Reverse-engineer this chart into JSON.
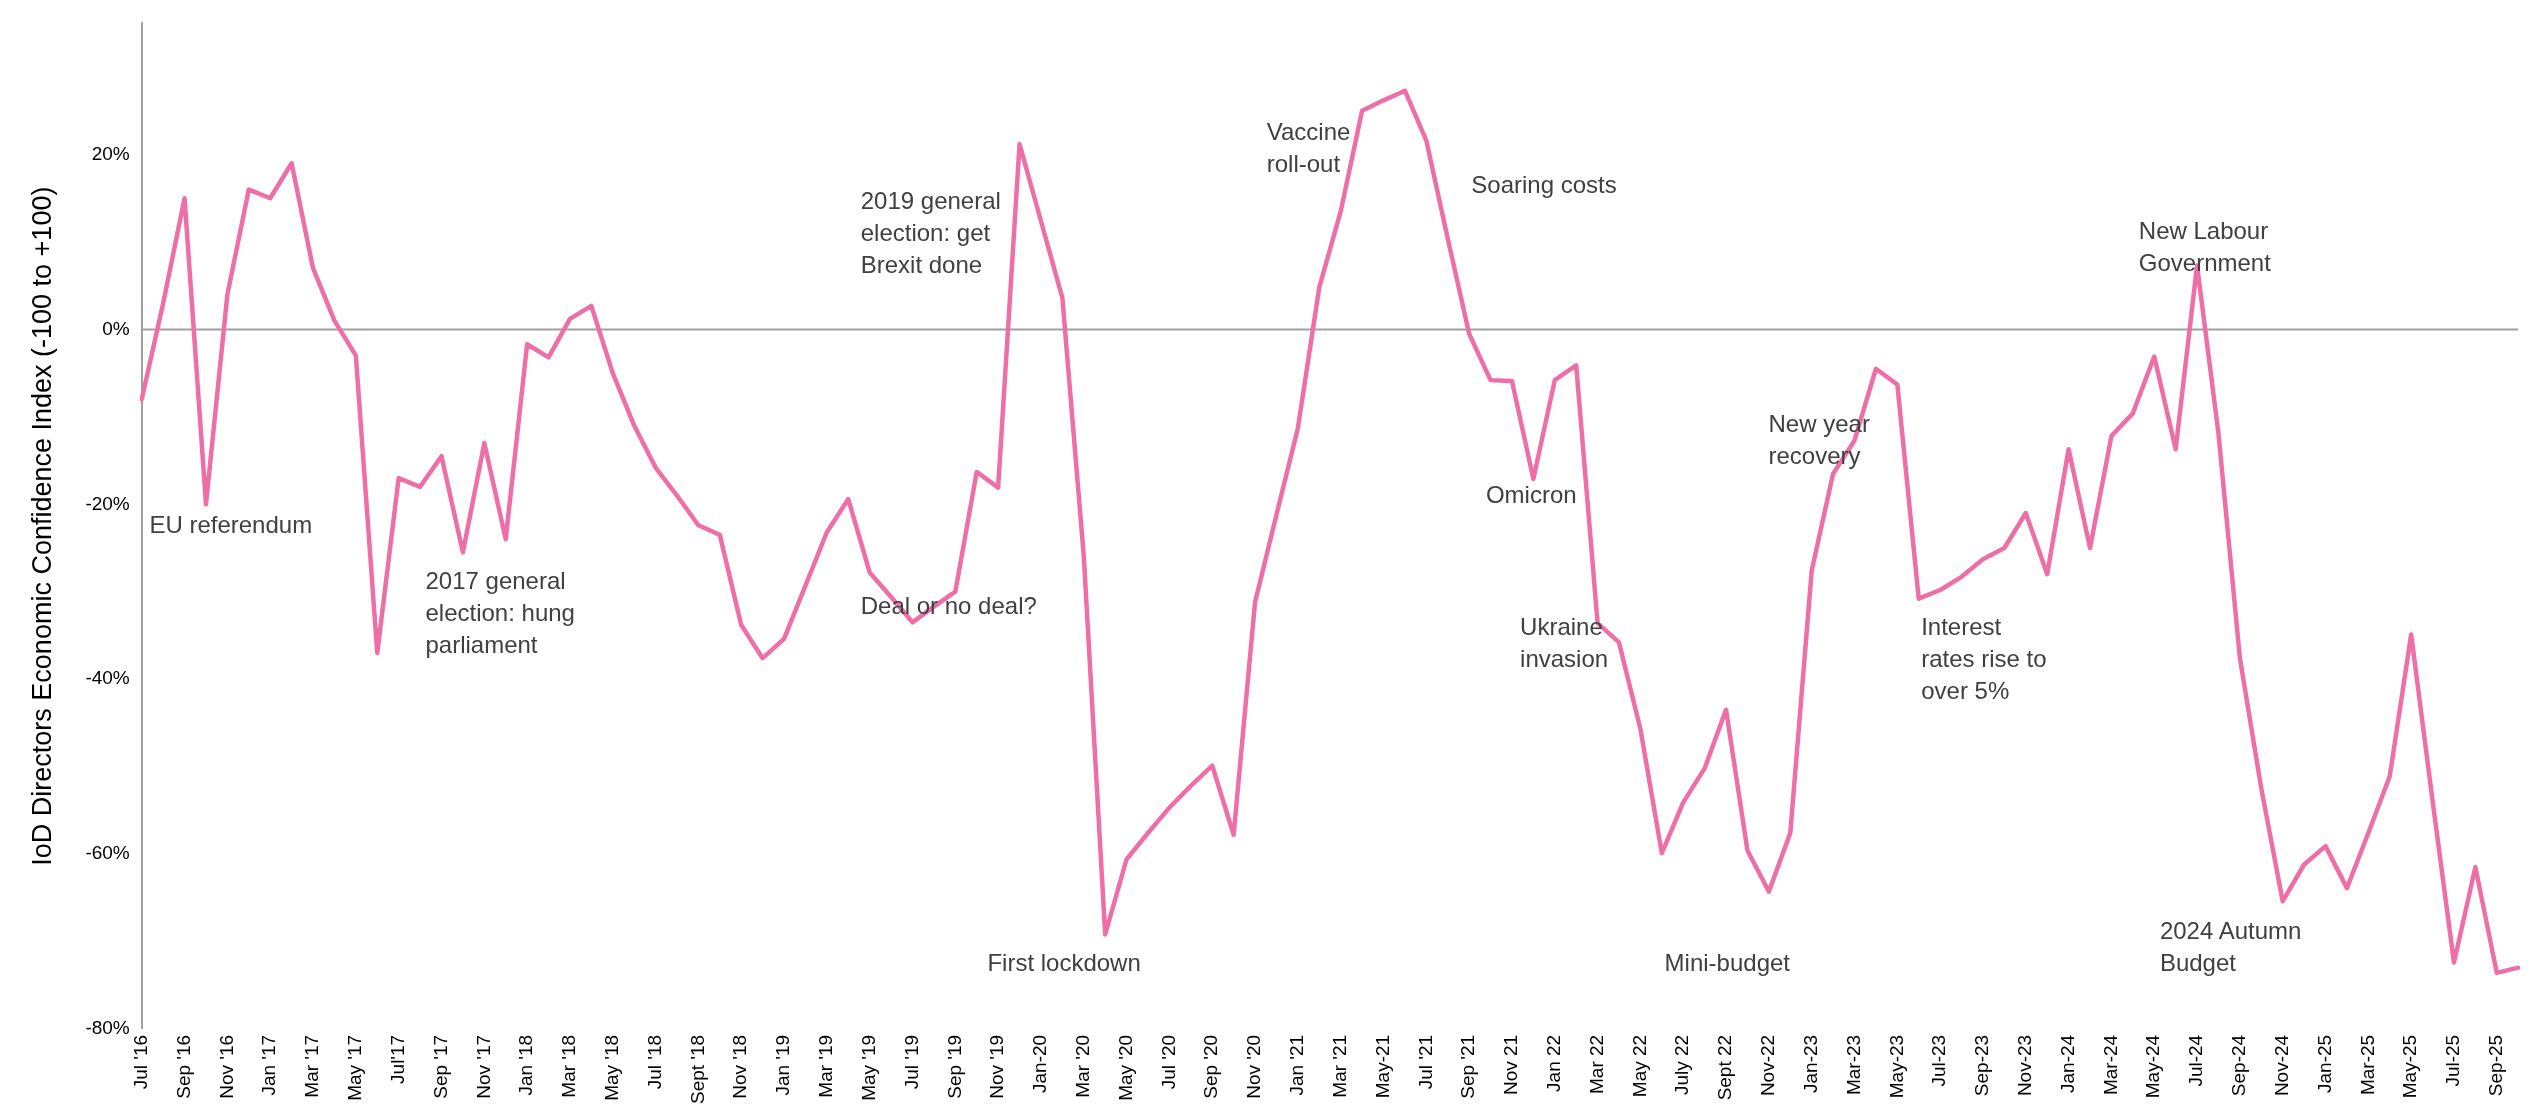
{
  "chart_data": {
    "type": "line",
    "ylabel": "IoD Directors Economic Confidence Index (-100 to +100)",
    "categories": [
      "Jul '16",
      null,
      "Sep '16",
      null,
      "Nov '16",
      null,
      "Jan '17",
      null,
      "Mar '17",
      null,
      "May '17",
      null,
      "Jul'17",
      null,
      "Sep '17",
      null,
      "Nov '17",
      null,
      "Jan '18",
      null,
      "Mar '18",
      null,
      "May '18",
      null,
      "Jul '18",
      null,
      "Sept '18",
      null,
      "Nov '18",
      null,
      "Jan '19",
      null,
      "Mar '19",
      null,
      "May '19",
      null,
      "Jul '19",
      null,
      "Sep '19",
      null,
      "Nov '19",
      null,
      "Jan-20",
      null,
      "Mar '20",
      null,
      "May '20",
      null,
      "Jul '20",
      null,
      "Sep '20",
      null,
      "Nov '20",
      null,
      "Jan '21",
      null,
      "Mar '21",
      null,
      "May-21",
      null,
      "Jul '21",
      null,
      "Sep '21",
      null,
      "Nov 21",
      null,
      "Jan 22",
      null,
      "Mar 22",
      null,
      "May 22",
      null,
      "July 22",
      null,
      "Sept 22",
      null,
      "Nov-22",
      null,
      "Jan-23",
      null,
      "Mar-23",
      null,
      "May-23",
      null,
      "Jul-23",
      null,
      "Sep-23",
      null,
      "Nov-23",
      null,
      "Jan-24",
      null,
      "Mar-24",
      null,
      "May-24",
      null,
      "Jul-24",
      null,
      "Sep-24",
      null,
      "Nov-24",
      null,
      "Jan-25",
      null,
      "Mar-25",
      null,
      "May-25",
      null,
      "Jul-25",
      null,
      "Sep-25",
      null
    ],
    "series": [
      {
        "color": "#ee6fa8",
        "values": [
          -8,
          3,
          15,
          -20,
          4,
          16,
          15,
          19,
          7,
          1,
          -3,
          -37,
          -17,
          -18,
          -14.5,
          -25.5,
          -13,
          -24,
          -1.7,
          -3.2,
          1.2,
          2.7,
          -5,
          -11,
          -15.8,
          -19,
          -22.4,
          -23.5,
          -33.8,
          -37.6,
          -35.4,
          -29.3,
          -23.2,
          -19.4,
          -27.8,
          -30.6,
          -33.5,
          -31.7,
          -30,
          -16.3,
          -18.1,
          21.2,
          12.4,
          3.6,
          -25.9,
          -69.2,
          -60.6,
          -57.6,
          -54.7,
          -52.2,
          -49.9,
          -57.8,
          -31.2,
          -21.2,
          -11.3,
          4.8,
          13.5,
          25,
          26.2,
          27.3,
          21.6,
          10.4,
          -0.5,
          -5.8,
          -5.9,
          -17.1,
          -5.8,
          -4.1,
          -33.6,
          -35.8,
          -45.7,
          -59.9,
          -54.1,
          -50.2,
          -43.5,
          -59.6,
          -64.3,
          -57.6,
          -27.6,
          -16.5,
          -12.7,
          -4.5,
          -6.3,
          -30.8,
          -29.8,
          -28.3,
          -26.3,
          -25,
          -21,
          -28,
          -13.7,
          -25,
          -12.2,
          -9.6,
          -3.1,
          -13.7,
          7.3,
          -11.9,
          -37.6,
          -52.5,
          -65.4,
          -61.2,
          -59.1,
          -63.9,
          -57.6,
          -51.1,
          -34.9,
          -53.9,
          -72.4,
          -61.5,
          -73.6,
          -73
        ]
      }
    ],
    "ylim": [
      -80,
      35
    ],
    "yticks": [
      {
        "value": -80,
        "label": "-80%"
      },
      {
        "value": -60,
        "label": "-60%"
      },
      {
        "value": -40,
        "label": "-40%"
      },
      {
        "value": -20,
        "label": "-20%"
      },
      {
        "value": 0,
        "label": "0%"
      },
      {
        "value": 20,
        "label": "20%"
      }
    ],
    "ref_lines": [
      {
        "axis": "y",
        "value": 0,
        "color": "#a0a0a0"
      }
    ],
    "marker": "none",
    "line_style": "solid",
    "legend": false,
    "grid": false,
    "annotations": [
      "EU referendum",
      "2017 general\nelection: hung\nparliament",
      "2019 general\nelection: get\nBrexit done",
      "Deal or no deal?",
      "First lockdown",
      "Vaccine\nroll-out",
      "Soaring costs",
      "Omicron",
      "Ukraine\ninvasion",
      "Mini-budget",
      "New year\nrecovery",
      "Interest\nrates rise to\nover 5%",
      "New Labour\nGovernment",
      "2024 Autumn\nBudget"
    ]
  }
}
